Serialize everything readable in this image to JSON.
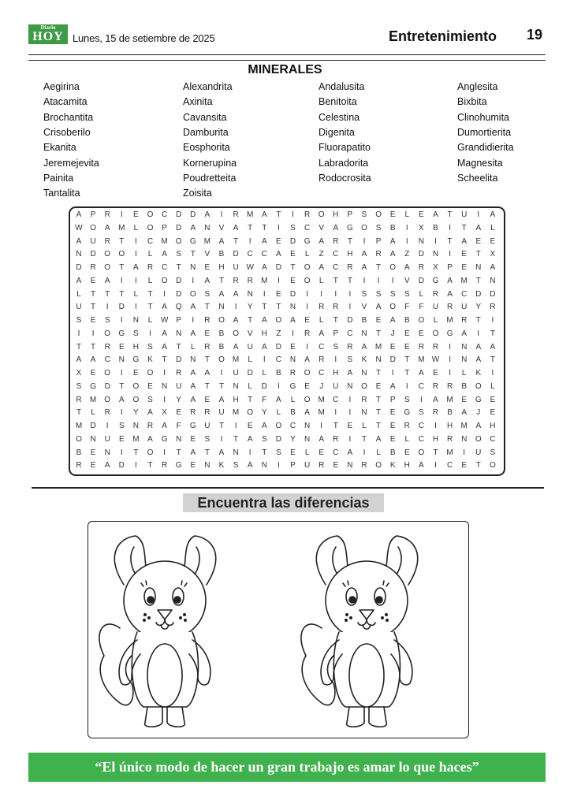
{
  "header": {
    "logo_small": "Diario",
    "logo_big": "HOY",
    "date": "Lunes, 15 de setiembre de 2025",
    "section": "Entretenimiento",
    "page_number": "19"
  },
  "wordsearch": {
    "title": "MINERALES",
    "words": [
      [
        "Aegirina",
        "Alexandrita",
        "Andalusita",
        "Anglesita"
      ],
      [
        "Atacamita",
        "Axinita",
        "Benitoita",
        "Bixbita"
      ],
      [
        "Brochantita",
        "Cavansita",
        "Celestina",
        "Clinohumita"
      ],
      [
        "Crisoberilo",
        "Damburita",
        "Digenita",
        "Dumortierita"
      ],
      [
        "Ekanita",
        "Eosphorita",
        "Fluorapatito",
        "Grandidierita"
      ],
      [
        "Jeremejevita",
        "Kornerupina",
        "Labradorita",
        "Magnesita"
      ],
      [
        "Painita",
        "Poudretteita",
        "Rodocrosita",
        "Scheelita"
      ],
      [
        "Tantalita",
        "Zoisita"
      ]
    ],
    "grid": [
      "APRIEOCDDAIRMATIROHPSOELEATUIA",
      "WOAMLOPDANVATTISCVAGOSBIXBITAL",
      "AURTICMOGMATIAEDGARTIPAINITAEE",
      "NDOOILASTVBDCCAELZCHARAZDNIETX",
      "DROTARCTNEHUWADTOACRATOARXPENA",
      "AEAIILODIATRRMIEOLTTIIIVDGAMTN",
      "LTTTLTIDOSAANIEDIIIISSSSLRACDD",
      "UTIDITAQATNIYTTNIRRIVAOFFURUYR",
      "SESINLWPIROATAOAELTDBEABOLMRTI",
      "IIOGSIANAEBOVHZIRAPCNTJEEOGAIT",
      "TTREHSATLRBAUADEICSRAMEERRINAA",
      "AACNGKTDNTOMLICNARISKNDTMWINAT",
      "XEOIEOIRAAIUDLBROCHANTITAEILKI",
      "SGDTOENUATTNLDIGEJUNOEAICRRBOL",
      "RMOAOSIYAEAHTFALOMCIRTPSIAMEGE",
      "TLRIYAXERRUMOYLBAMIINTEGSRBAJE",
      "MDISNRAFGUTIEAOCNITELTERCIHMAH",
      "ONUEMAGNESITASDYNARITAELCHRNOC",
      "BENITOITATANITSELECAILBEOTMIUS",
      "READITRGENKSANIPURENROKHAICETO"
    ]
  },
  "differences": {
    "title": "Encuentra las diferencias"
  },
  "quote": "“El único modo de hacer un gran trabajo es amar lo que haces”",
  "colors": {
    "brand_green": "#3f9a47",
    "banner_green": "#3fb14d",
    "label_gray": "#d2d2d2"
  }
}
